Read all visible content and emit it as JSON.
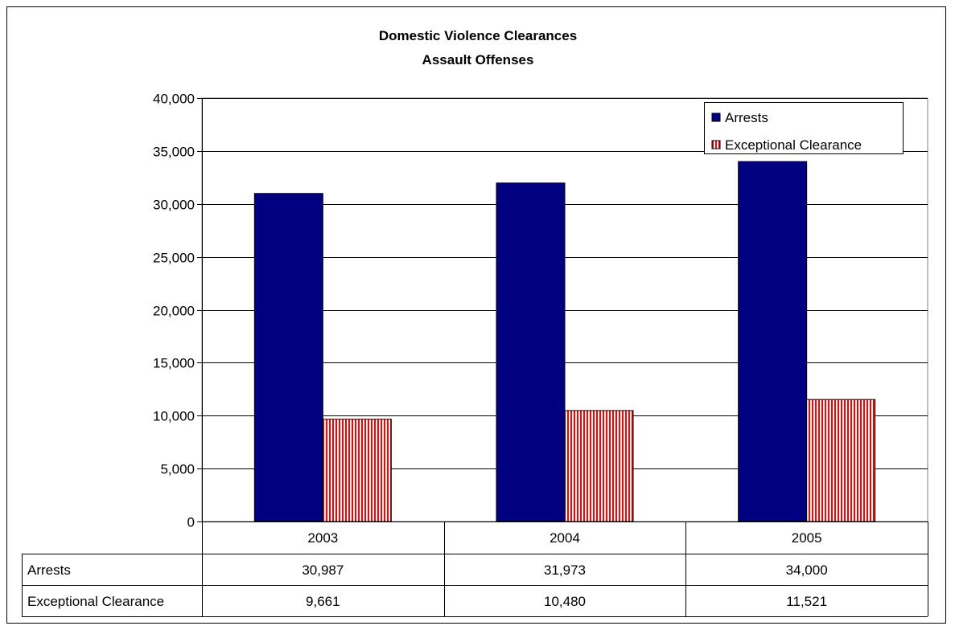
{
  "chart_data": {
    "type": "bar",
    "title": "Domestic Violence Clearances",
    "subtitle": "Assault Offenses",
    "categories": [
      "2003",
      "2004",
      "2005"
    ],
    "series": [
      {
        "name": "Arrests",
        "values": [
          30987,
          31973,
          34000
        ],
        "labels": [
          "30,987",
          "31,973",
          "34,000"
        ],
        "color": "#000080",
        "pattern": "solid"
      },
      {
        "name": "Exceptional Clearance",
        "values": [
          9661,
          10480,
          11521
        ],
        "labels": [
          "9,661",
          "10,480",
          "11,521"
        ],
        "color": "#ff0000",
        "pattern": "vertical-stripes"
      }
    ],
    "ylim": [
      0,
      40000
    ],
    "yticks": [
      0,
      5000,
      10000,
      15000,
      20000,
      25000,
      30000,
      35000,
      40000
    ],
    "ytick_labels": [
      "0",
      "5,000",
      "10,000",
      "15,000",
      "20,000",
      "25,000",
      "30,000",
      "35,000",
      "40,000"
    ],
    "grid": true,
    "legend_position": "top-right",
    "data_table": true
  }
}
